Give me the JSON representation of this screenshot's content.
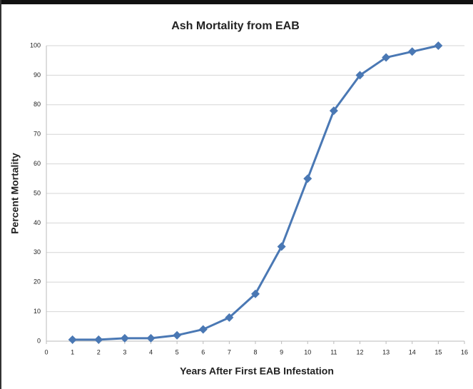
{
  "chart_data": {
    "type": "line",
    "title": "Ash Mortality from EAB",
    "x_label": "Years After First EAB Infestation",
    "y_label": "Percent Mortality",
    "x": [
      1,
      2,
      3,
      4,
      5,
      6,
      7,
      8,
      9,
      10,
      11,
      12,
      13,
      14,
      15
    ],
    "series": [
      {
        "name": "Percent Mortality",
        "color": "#4a78b4",
        "values": [
          0.5,
          0.5,
          1,
          1,
          2,
          4,
          8,
          16,
          32,
          55,
          78,
          90,
          96,
          98,
          100
        ]
      }
    ],
    "xlim": [
      0,
      16
    ],
    "xticks": [
      0,
      1,
      2,
      3,
      4,
      5,
      6,
      7,
      8,
      9,
      10,
      11,
      12,
      13,
      14,
      15,
      16
    ],
    "ylim": [
      0,
      100
    ],
    "yticks": [
      0,
      10,
      20,
      30,
      40,
      50,
      60,
      70,
      80,
      90,
      100
    ],
    "grid": true
  }
}
